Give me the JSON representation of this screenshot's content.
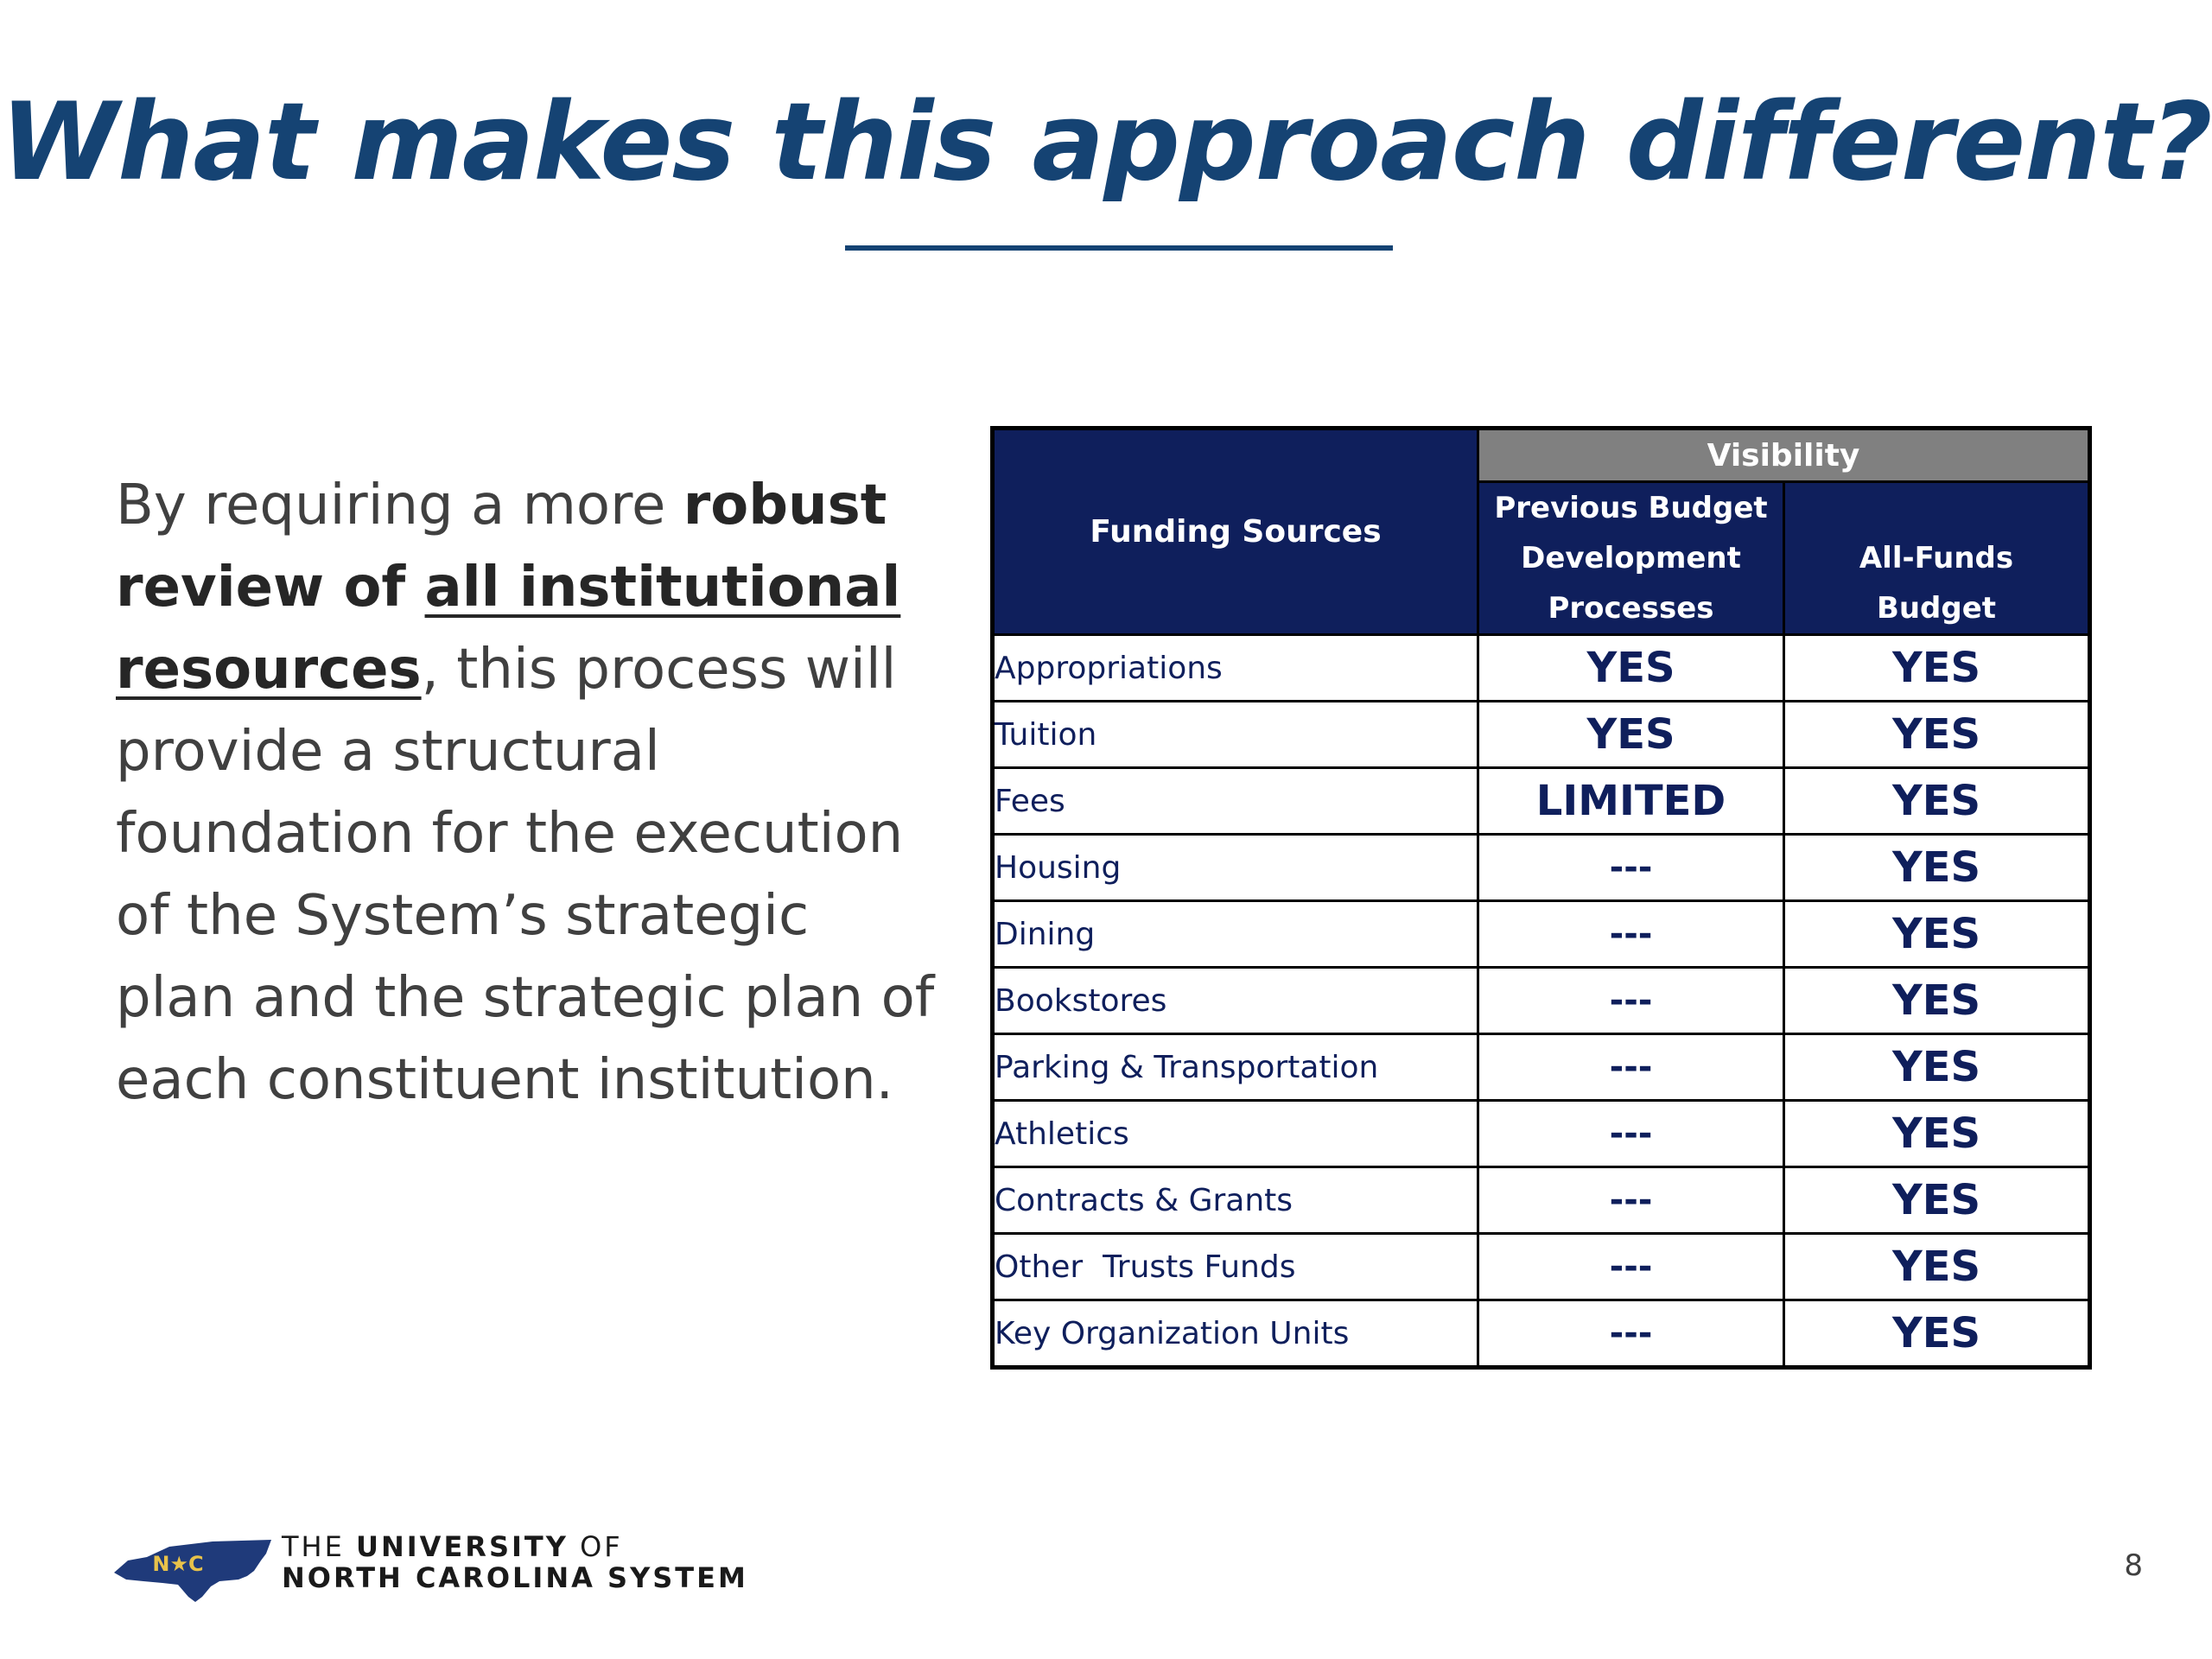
{
  "slide": {
    "title": "What makes this approach different?",
    "page_number": "8"
  },
  "body": {
    "part1": "By requiring a more ",
    "bold1": "robust review of ",
    "bold_underline": "all institutional resources",
    "part2": ", this process will provide a structural foundation for the execution of the System’s strategic plan and the strategic plan of each constituent institution."
  },
  "table": {
    "header_sources": "Funding Sources",
    "header_group": "Visibility",
    "header_col1_line1": "Previous Budget",
    "header_col1_line2": "Development",
    "header_col1_line3": "Processes",
    "header_col2_line1": "All-Funds",
    "header_col2_line2": "Budget",
    "rows": [
      {
        "source": "Appropriations",
        "previous": "YES",
        "all_funds": "YES"
      },
      {
        "source": "Tuition",
        "previous": "YES",
        "all_funds": "YES"
      },
      {
        "source": "Fees",
        "previous": "LIMITED",
        "all_funds": "YES"
      },
      {
        "source": "Housing",
        "previous": "---",
        "all_funds": "YES"
      },
      {
        "source": "Dining",
        "previous": "---",
        "all_funds": "YES"
      },
      {
        "source": "Bookstores",
        "previous": "---",
        "all_funds": "YES"
      },
      {
        "source": "Parking & Transportation",
        "previous": "---",
        "all_funds": "YES"
      },
      {
        "source": "Athletics",
        "previous": "---",
        "all_funds": "YES"
      },
      {
        "source": "Contracts & Grants",
        "previous": "---",
        "all_funds": "YES"
      },
      {
        "source": "Other  Trusts Funds",
        "previous": "---",
        "all_funds": "YES"
      },
      {
        "source": "Key Organization Units",
        "previous": "---",
        "all_funds": "YES"
      }
    ]
  },
  "logo": {
    "icon": "north-carolina-state-shape-icon",
    "state_mark": "N★C",
    "line1_prefix": "THE ",
    "line1_bold": "UNIVERSITY",
    "line1_suffix": " OF",
    "line2": "NORTH CAROLINA SYSTEM"
  },
  "colors": {
    "title": "#154373",
    "header_bg": "#0f1f5c",
    "group_header_bg": "#808080",
    "body_text": "#404040"
  }
}
